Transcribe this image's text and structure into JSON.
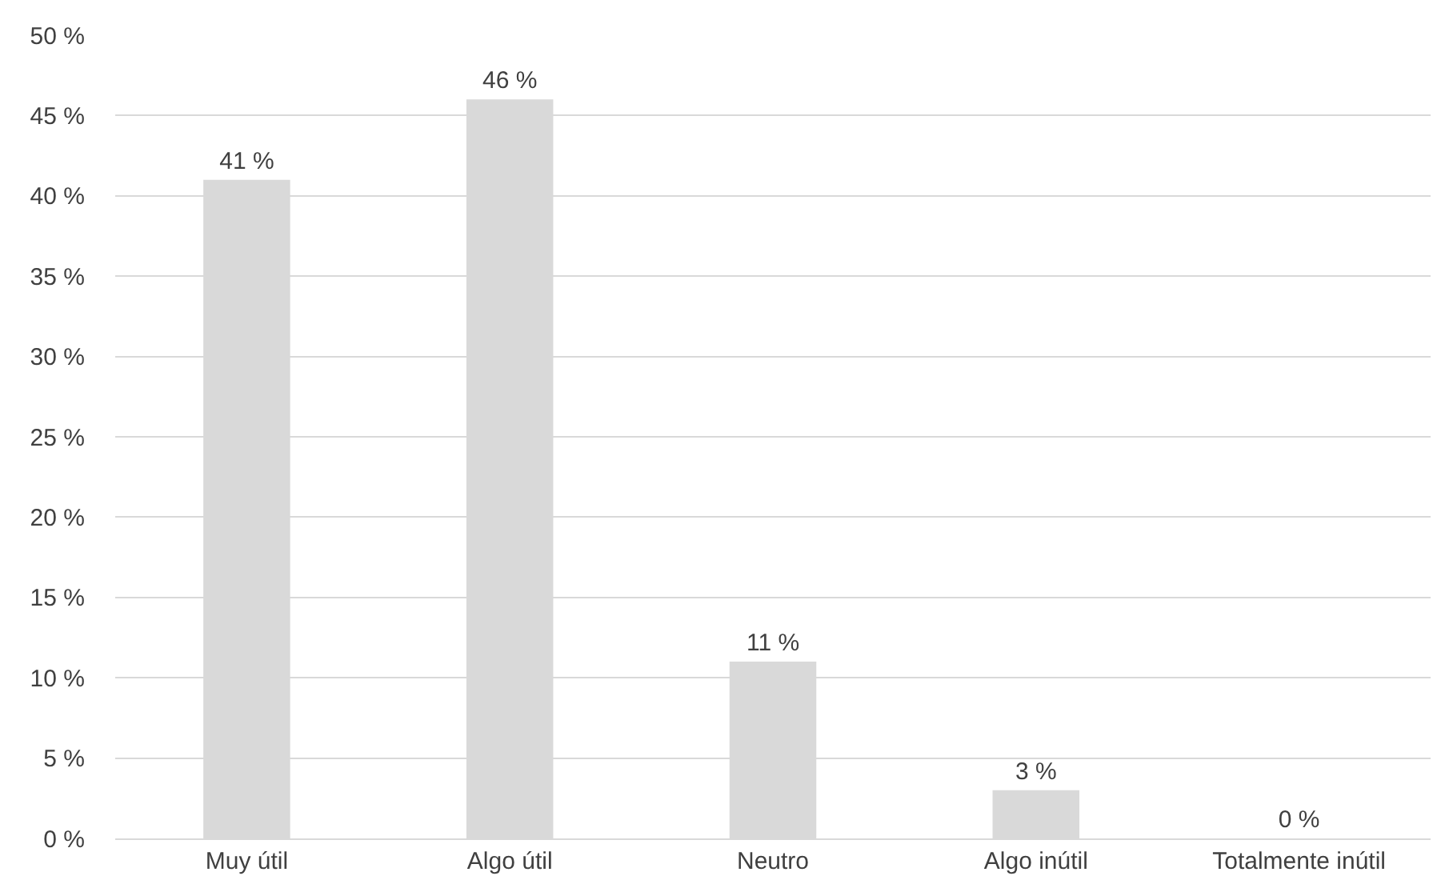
{
  "chart_data": {
    "type": "bar",
    "categories": [
      "Muy útil",
      "Algo útil",
      "Neutro",
      "Algo inútil",
      "Totalmente inútil"
    ],
    "values": [
      41,
      46,
      11,
      3,
      0
    ],
    "color": "#d9d9d9",
    "ylim": [
      0,
      50
    ],
    "yticks": [
      {
        "value": 0,
        "label": "0 %"
      },
      {
        "value": 5,
        "label": "5 %"
      },
      {
        "value": 10,
        "label": "10 %"
      },
      {
        "value": 15,
        "label": "15 %"
      },
      {
        "value": 20,
        "label": "20 %"
      },
      {
        "value": 25,
        "label": "25 %"
      },
      {
        "value": 30,
        "label": "30 %"
      },
      {
        "value": 35,
        "label": "35 %"
      },
      {
        "value": 40,
        "label": "40 %"
      },
      {
        "value": 45,
        "label": "45 %"
      },
      {
        "value": 50,
        "label": "50 %"
      }
    ],
    "value_labels": [
      "41 %",
      "46 %",
      "11 %",
      "3 %",
      "0 %"
    ],
    "grid": "y",
    "legend": false
  }
}
